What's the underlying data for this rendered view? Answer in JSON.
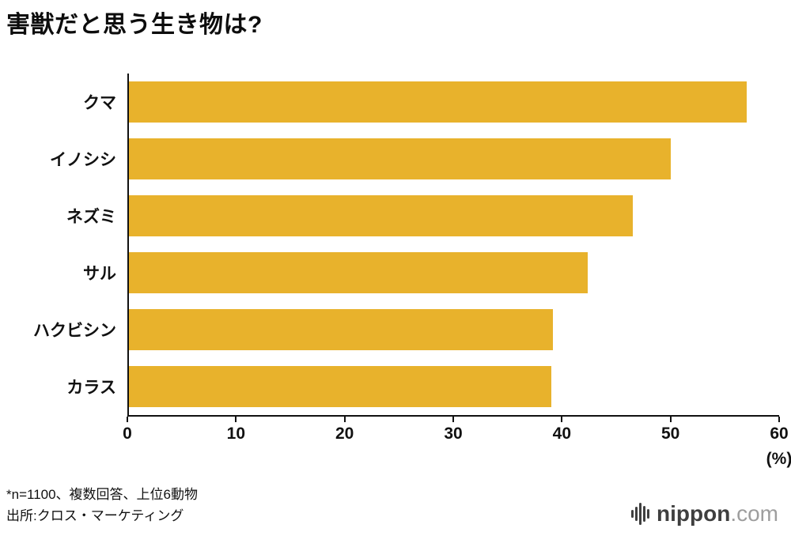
{
  "title": "害獣だと思う生き物は?",
  "chart_data": {
    "type": "bar",
    "orientation": "horizontal",
    "title": "害獣だと思う生き物は?",
    "categories": [
      "クマ",
      "イノシシ",
      "ネズミ",
      "サル",
      "ハクビシン",
      "カラス"
    ],
    "values": [
      57,
      50,
      46.5,
      42.3,
      39.1,
      39
    ],
    "xlim": [
      0,
      60
    ],
    "xticks": [
      0,
      10,
      20,
      30,
      40,
      50,
      60
    ],
    "unit_label": "(%)",
    "bar_color": "#E8B22C",
    "axis_color": "#111111",
    "grid": false,
    "legend": "none"
  },
  "footnotes": {
    "line1": "*n=1100、複数回答、上位6動物",
    "line2": "出所:クロス・マーケティング"
  },
  "logo": {
    "icon": "soundbars-icon",
    "name": "nippon",
    "tld": ".com"
  }
}
